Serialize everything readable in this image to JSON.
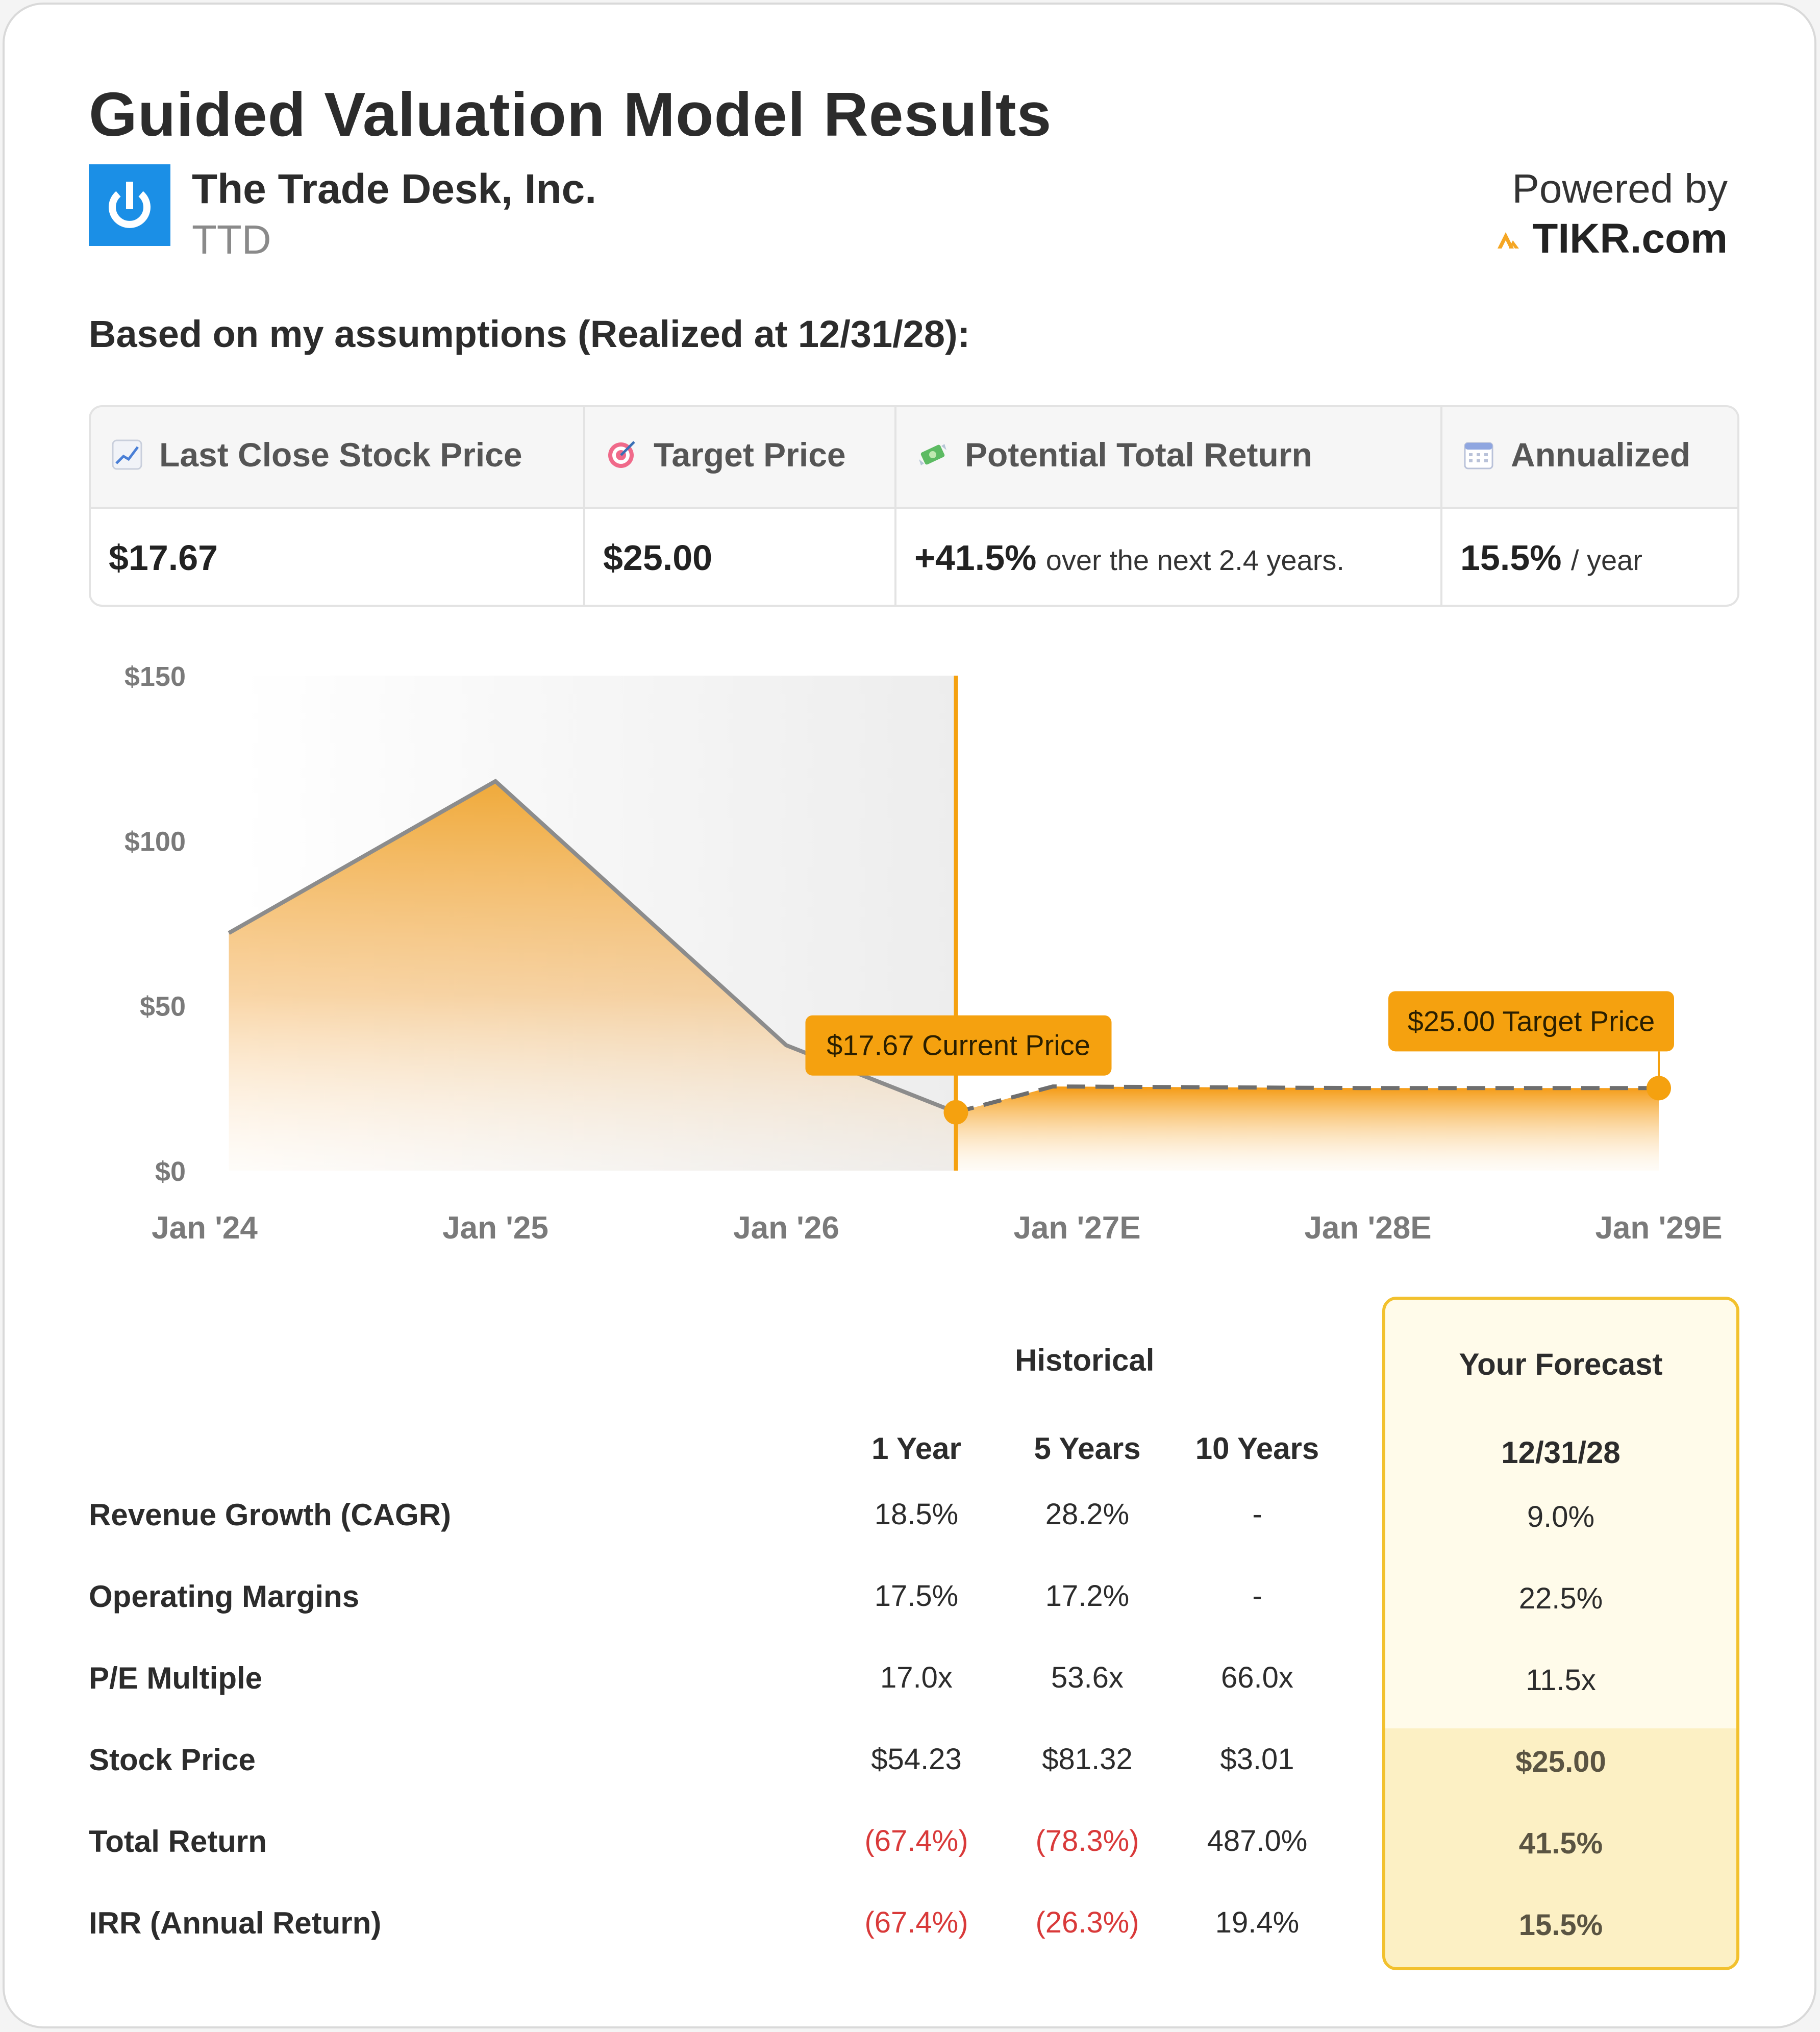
{
  "header": {
    "title": "Guided Valuation Model Results",
    "company": "The Trade Desk, Inc.",
    "ticker": "TTD",
    "powered_by": "Powered by",
    "brand": "TIKR.com",
    "assumptions": "Based on my assumptions (Realized at 12/31/28):"
  },
  "stats": {
    "last_close_label": "Last Close Stock Price",
    "last_close_value": "$17.67",
    "target_label": "Target Price",
    "target_value": "$25.00",
    "return_label": "Potential Total Return",
    "return_value": "+41.5%",
    "return_note": "over the next 2.4 years.",
    "annualized_label": "Annualized",
    "annualized_value": "15.5%",
    "annualized_note": "/ year"
  },
  "chart_data": {
    "type": "area",
    "y_ticks": [
      "$150",
      "$100",
      "$50",
      "$0"
    ],
    "ylim": [
      0,
      150
    ],
    "x_tick_labels": [
      "Jan '24",
      "Jan '25",
      "Jan '26",
      "Jan '27E",
      "Jan '28E",
      "Jan '29E"
    ],
    "historical": [
      {
        "x": "2024-02",
        "y": 72
      },
      {
        "x": "2025-01",
        "y": 118
      },
      {
        "x": "2026-01",
        "y": 38
      },
      {
        "x": "2026-08",
        "y": 17.67
      }
    ],
    "forecast": [
      {
        "x": "2026-08",
        "y": 17.67
      },
      {
        "x": "2026-12",
        "y": 25.5
      },
      {
        "x": "2028-01",
        "y": 25
      },
      {
        "x": "2029-01",
        "y": 25
      }
    ],
    "current_marker": {
      "label": "$17.67 Current Price",
      "value": 17.67
    },
    "target_marker": {
      "label": "$25.00 Target Price",
      "value": 25.0
    },
    "colors": {
      "accent": "#f5a623",
      "line": "#8c8c8c",
      "shade": "#efefef"
    }
  },
  "table": {
    "historical_label": "Historical",
    "forecast_label": "Your Forecast",
    "columns": [
      "1 Year",
      "5 Years",
      "10 Years"
    ],
    "forecast_date": "12/31/28",
    "rows": [
      {
        "label": "Revenue Growth (CAGR)",
        "values": [
          "18.5%",
          "28.2%",
          "-"
        ],
        "forecast": "9.0%"
      },
      {
        "label": "Operating Margins",
        "values": [
          "17.5%",
          "17.2%",
          "-"
        ],
        "forecast": "22.5%"
      },
      {
        "label": "P/E Multiple",
        "values": [
          "17.0x",
          "53.6x",
          "66.0x"
        ],
        "forecast": "11.5x"
      },
      {
        "label": "Stock Price",
        "values": [
          "$54.23",
          "$81.32",
          "$3.01"
        ],
        "forecast": "$25.00"
      },
      {
        "label": "Total Return",
        "values": [
          "(67.4%)",
          "(78.3%)",
          "487.0%"
        ],
        "forecast": "41.5%"
      },
      {
        "label": "IRR (Annual Return)",
        "values": [
          "(67.4%)",
          "(26.3%)",
          "19.4%"
        ],
        "forecast": "15.5%"
      }
    ]
  }
}
